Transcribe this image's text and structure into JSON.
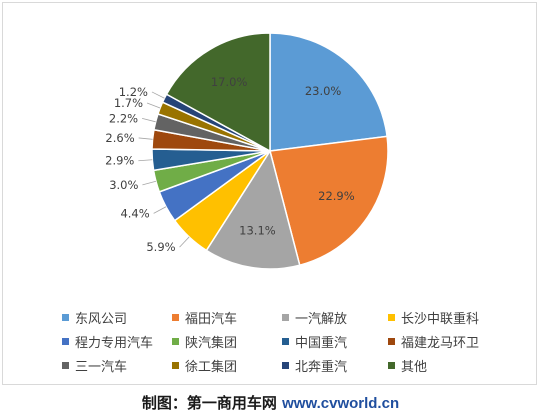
{
  "chart_data": {
    "type": "pie",
    "slices": [
      {
        "name": "东风公司",
        "value": 23.0,
        "label": "23.0%",
        "color": "#5b9bd5"
      },
      {
        "name": "福田汽车",
        "value": 22.9,
        "label": "22.9%",
        "color": "#ed7d31"
      },
      {
        "name": "一汽解放",
        "value": 13.1,
        "label": "13.1%",
        "color": "#a5a5a5"
      },
      {
        "name": "长沙中联重科",
        "value": 5.9,
        "label": "5.9%",
        "color": "#ffc000"
      },
      {
        "name": "程力专用汽车",
        "value": 4.4,
        "label": "4.4%",
        "color": "#4472c4"
      },
      {
        "name": "陕汽集团",
        "value": 3.0,
        "label": "3.0%",
        "color": "#70ad47"
      },
      {
        "name": "中国重汽",
        "value": 2.9,
        "label": "2.9%",
        "color": "#255e91"
      },
      {
        "name": "福建龙马环卫",
        "value": 2.6,
        "label": "2.6%",
        "color": "#9e480e"
      },
      {
        "name": "三一汽车",
        "value": 2.2,
        "label": "2.2%",
        "color": "#636363"
      },
      {
        "name": "徐工集团",
        "value": 1.7,
        "label": "1.7%",
        "color": "#997300"
      },
      {
        "name": "北奔重汽",
        "value": 1.2,
        "label": "1.2%",
        "color": "#264478"
      },
      {
        "name": "其他",
        "value": 17.0,
        "label": "17.0%",
        "color": "#43682b"
      }
    ],
    "legend_position": "bottom"
  },
  "footer": {
    "credit_label": "制图：第一商用车网",
    "credit_site": "www.cvworld.cn"
  }
}
